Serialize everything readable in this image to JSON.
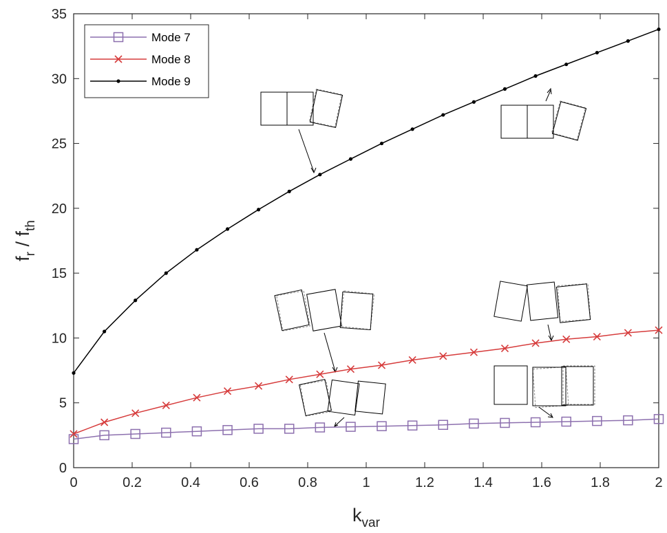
{
  "chart_data": {
    "type": "line",
    "xlabel": {
      "main": "k",
      "sub": "var"
    },
    "ylabel": {
      "p1": "f",
      "s1": "r",
      "p2": " / f",
      "s2": "th"
    },
    "xlim": [
      0,
      2
    ],
    "ylim": [
      0,
      35
    ],
    "xticks": [
      0,
      0.2,
      0.4,
      0.6,
      0.8,
      1,
      1.2,
      1.4,
      1.6,
      1.8,
      2
    ],
    "xtick_labels": [
      "0",
      "0.2",
      "0.4",
      "0.6",
      "0.8",
      "1",
      "1.2",
      "1.4",
      "1.6",
      "1.8",
      "2"
    ],
    "yticks": [
      0,
      5,
      10,
      15,
      20,
      25,
      30,
      35
    ],
    "ytick_labels": [
      "0",
      "5",
      "10",
      "15",
      "20",
      "25",
      "30",
      "35"
    ],
    "grid": false,
    "legend_position": "top-left",
    "x": [
      0,
      0.105,
      0.211,
      0.316,
      0.421,
      0.526,
      0.632,
      0.737,
      0.842,
      0.947,
      1.053,
      1.158,
      1.263,
      1.368,
      1.474,
      1.579,
      1.684,
      1.789,
      1.895,
      2.0
    ],
    "series": [
      {
        "name": "Mode 7",
        "marker": "square",
        "color": "#8c6fae",
        "values": [
          2.2,
          2.5,
          2.6,
          2.7,
          2.8,
          2.9,
          3.0,
          3.0,
          3.1,
          3.15,
          3.2,
          3.25,
          3.3,
          3.4,
          3.45,
          3.5,
          3.55,
          3.6,
          3.65,
          3.75
        ]
      },
      {
        "name": "Mode 8",
        "marker": "x",
        "color": "#d63b3b",
        "values": [
          2.6,
          3.5,
          4.2,
          4.8,
          5.4,
          5.9,
          6.3,
          6.8,
          7.2,
          7.6,
          7.9,
          8.3,
          8.6,
          8.9,
          9.2,
          9.6,
          9.9,
          10.1,
          10.4,
          10.6
        ]
      },
      {
        "name": "Mode 9",
        "marker": "dot",
        "color": "#000000",
        "values": [
          7.3,
          10.5,
          12.9,
          15.0,
          16.8,
          18.4,
          19.9,
          21.3,
          22.6,
          23.8,
          25.0,
          26.1,
          27.2,
          28.2,
          29.2,
          30.2,
          31.1,
          32.0,
          32.9,
          33.8
        ]
      }
    ]
  }
}
